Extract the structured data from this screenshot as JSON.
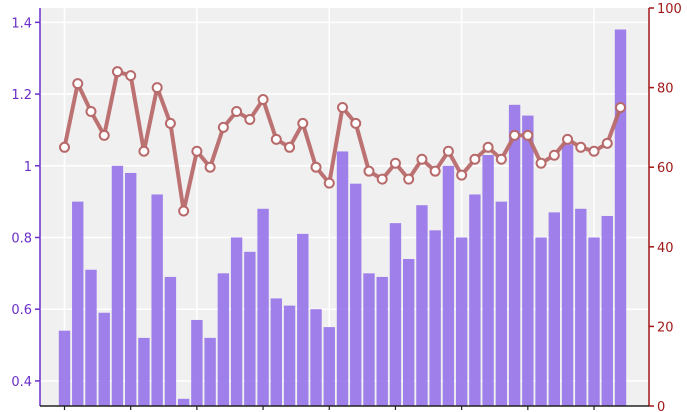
{
  "chart_data": {
    "type": "bar",
    "title": "",
    "xlabel": "",
    "ylabel": "",
    "y2label": "",
    "grid": true,
    "colors": {
      "bar": "#9370e8",
      "line": "#b86a6a",
      "marker_fill": "#ffffff",
      "left_axis": "#6a2fc8",
      "right_axis": "#a01818",
      "plot_bg": "#f0f0f0"
    },
    "ylim": [
      0.33,
      1.44
    ],
    "y2lim": [
      0,
      100
    ],
    "yticks": [
      {
        "value": 0.4,
        "label": "0.4"
      },
      {
        "value": 0.6,
        "label": "0.6"
      },
      {
        "value": 0.8,
        "label": "0.8"
      },
      {
        "value": 1.0,
        "label": "1"
      },
      {
        "value": 1.2,
        "label": "1.2"
      },
      {
        "value": 1.4,
        "label": "1.4"
      }
    ],
    "y2ticks": [
      {
        "value": 0,
        "label": "0"
      },
      {
        "value": 20,
        "label": "20"
      },
      {
        "value": 40,
        "label": "40"
      },
      {
        "value": 60,
        "label": "60"
      },
      {
        "value": 80,
        "label": "80"
      },
      {
        "value": 100,
        "label": "100"
      }
    ],
    "series": [
      {
        "kind": "bar",
        "axis": "left",
        "values": [
          0.54,
          0.9,
          0.71,
          0.59,
          1.0,
          0.98,
          0.52,
          0.92,
          0.69,
          0.35,
          0.57,
          0.52,
          0.7,
          0.8,
          0.76,
          0.88,
          0.63,
          0.61,
          0.81,
          0.6,
          0.55,
          1.04,
          0.95,
          0.7,
          0.69,
          0.84,
          0.74,
          0.89,
          0.82,
          1.0,
          0.8,
          0.92,
          1.03,
          0.9,
          1.17,
          1.14,
          0.8,
          0.87,
          1.06,
          0.88,
          0.8,
          0.86,
          1.38
        ]
      },
      {
        "kind": "line",
        "axis": "right",
        "values": [
          65,
          81,
          74,
          68,
          84,
          83,
          64,
          80,
          71,
          49,
          64,
          60,
          70,
          74,
          72,
          77,
          67,
          65,
          71,
          60,
          56,
          75,
          71,
          59,
          57,
          61,
          57,
          62,
          59,
          64,
          58,
          62,
          65,
          62,
          68,
          68,
          61,
          63,
          67,
          65,
          64,
          66,
          75
        ]
      }
    ]
  }
}
